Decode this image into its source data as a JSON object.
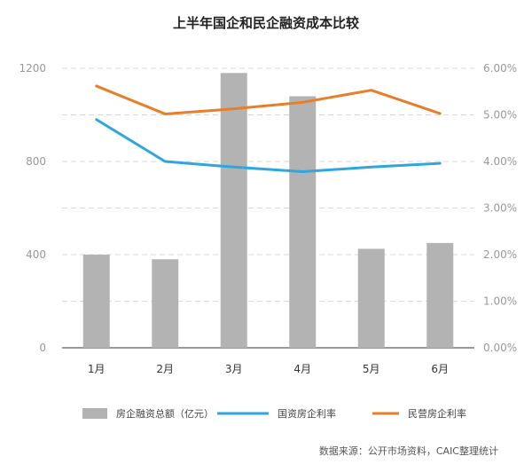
{
  "chart_data": {
    "type": "bar",
    "title": "上半年国企和民企融资成本比较",
    "categories": [
      "1月",
      "2月",
      "3月",
      "4月",
      "5月",
      "6月"
    ],
    "series": [
      {
        "name": "房企融资总额（亿元）",
        "type": "bar",
        "axis": "left",
        "values": [
          400,
          380,
          1180,
          1080,
          425,
          450
        ],
        "color": "#b3b3b3"
      },
      {
        "name": "国资房企利率",
        "type": "line",
        "axis": "right",
        "values": [
          4.9,
          4.0,
          3.88,
          3.78,
          3.88,
          3.96
        ],
        "color": "#2fa6de"
      },
      {
        "name": "民营房企利率",
        "type": "line",
        "axis": "right",
        "values": [
          5.62,
          5.02,
          5.13,
          5.27,
          5.53,
          5.03
        ],
        "color": "#e67e2a"
      }
    ],
    "y_left": {
      "range": [
        0,
        1200
      ],
      "ticks": [
        "0",
        "400",
        "800",
        "1200"
      ],
      "tick_values": [
        0,
        400,
        800,
        1200
      ]
    },
    "y_right": {
      "range": [
        0,
        6
      ],
      "ticks": [
        "0.00%",
        "1.00%",
        "2.00%",
        "3.00%",
        "4.00%",
        "5.00%",
        "6.00%"
      ],
      "tick_values": [
        0,
        1,
        2,
        3,
        4,
        5,
        6
      ]
    },
    "grid": true,
    "legend_position": "bottom",
    "source": "数据来源：公开市场资料，CAIC整理统计"
  }
}
